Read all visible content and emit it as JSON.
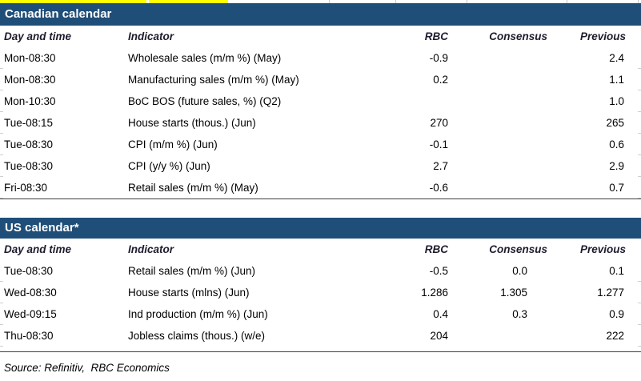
{
  "colors": {
    "section_header_bg": "#1F4E79",
    "section_header_text": "#FFFFFF",
    "highlight_yellow": "#FFFF00",
    "table_border": "#3F3F3F"
  },
  "columns": [
    "Day and time",
    "Indicator",
    "RBC",
    "Consensus",
    "Previous"
  ],
  "tables": [
    {
      "title": "Canadian calendar",
      "rows": [
        {
          "day": "Mon-08:30",
          "indicator": "Wholesale sales (m/m %) (May)",
          "rbc": "-0.9",
          "consensus": "",
          "previous": "2.4"
        },
        {
          "day": "Mon-08:30",
          "indicator": "Manufacturing sales (m/m %) (May)",
          "rbc": "0.2",
          "consensus": "",
          "previous": "1.1"
        },
        {
          "day": "Mon-10:30",
          "indicator": "BoC BOS (future sales, %) (Q2)",
          "rbc": "",
          "consensus": "",
          "previous": "1.0"
        },
        {
          "day": "Tue-08:15",
          "indicator": "House starts (thous.) (Jun)",
          "rbc": "270",
          "consensus": "",
          "previous": "265"
        },
        {
          "day": "Tue-08:30",
          "indicator": "CPI (m/m %) (Jun)",
          "rbc": "-0.1",
          "consensus": "",
          "previous": "0.6"
        },
        {
          "day": "Tue-08:30",
          "indicator": "CPI (y/y %) (Jun)",
          "rbc": "2.7",
          "consensus": "",
          "previous": "2.9"
        },
        {
          "day": "Fri-08:30",
          "indicator": "Retail sales (m/m %) (May)",
          "rbc": "-0.6",
          "consensus": "",
          "previous": "0.7"
        }
      ]
    },
    {
      "title": "US calendar*",
      "rows": [
        {
          "day": "Tue-08:30",
          "indicator": "Retail sales (m/m %) (Jun)",
          "rbc": "-0.5",
          "consensus": "0.0",
          "previous": "0.1"
        },
        {
          "day": "Wed-08:30",
          "indicator": "House starts (mlns) (Jun)",
          "rbc": "1.286",
          "consensus": "1.305",
          "previous": "1.277"
        },
        {
          "day": "Wed-09:15",
          "indicator": "Ind production (m/m %) (Jun)",
          "rbc": "0.4",
          "consensus": "0.3",
          "previous": "0.9"
        },
        {
          "day": "Thu-08:30",
          "indicator": "Jobless claims (thous.) (w/e)",
          "rbc": "204",
          "consensus": "",
          "previous": "222"
        }
      ]
    }
  ],
  "source": "Source: Refinitiv,  RBC Economics"
}
